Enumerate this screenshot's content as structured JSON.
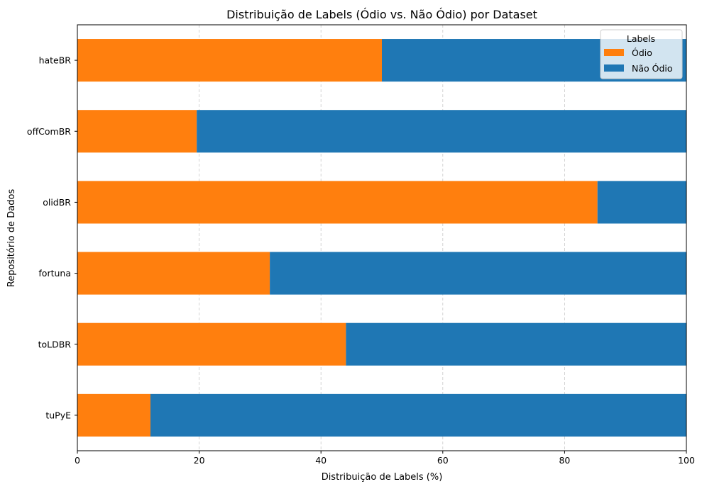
{
  "chart_data": {
    "type": "bar",
    "orientation": "horizontal",
    "stacked": true,
    "title": "Distribuição de Labels (Ódio vs. Não Ódio) por Dataset",
    "xlabel": "Distribuição de Labels (%)",
    "ylabel": "Repositório de Dados",
    "xlim": [
      0,
      100
    ],
    "xticks": [
      "0",
      "20",
      "40",
      "60",
      "80",
      "100"
    ],
    "grid": "vertical dashed",
    "categories": [
      "hateBR",
      "offComBR",
      "olidBR",
      "fortuna",
      "toLDBR",
      "tuPyE"
    ],
    "series": [
      {
        "name": "Ódio",
        "color": "#ff7f0e",
        "values": [
          50.0,
          19.6,
          85.4,
          31.6,
          44.1,
          12.0
        ]
      },
      {
        "name": "Não Ódio",
        "color": "#1f77b4",
        "values": [
          50.0,
          80.4,
          14.6,
          68.4,
          55.9,
          88.0
        ]
      }
    ],
    "legend": {
      "title": "Labels",
      "placement": "top-right"
    }
  }
}
